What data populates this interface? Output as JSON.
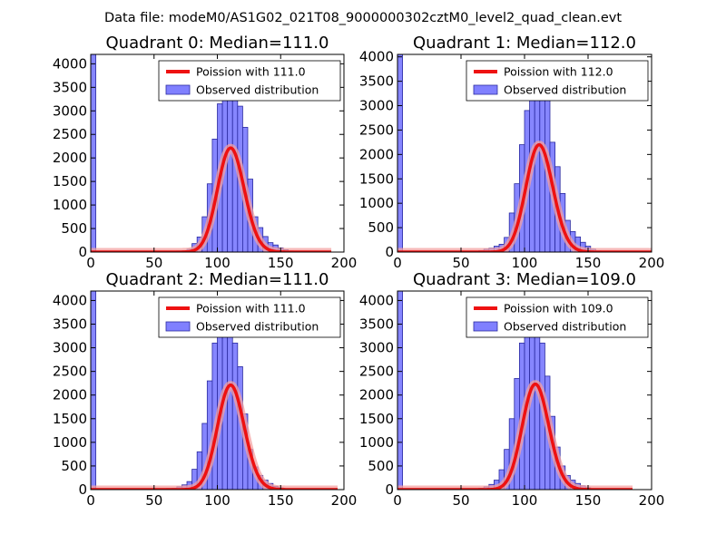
{
  "figure": {
    "suptitle": "Data file: modeM0/AS1G02_021T08_9000000302cztM0_level2_quad_clean.evt"
  },
  "colors": {
    "bar_fill": "#8080ff",
    "bar_edge": "#2a2aa0",
    "poisson_line": "#ee1111",
    "poisson_glow": "#f4a0a0",
    "axes": "#000000"
  },
  "chart_data": [
    {
      "type": "bar",
      "title": "Quadrant 0: Median=111.0",
      "xlim": [
        0,
        200
      ],
      "ylim": [
        0,
        4200
      ],
      "xticks": [
        "0",
        "50",
        "100",
        "150",
        "200"
      ],
      "yticks": [
        "0",
        "500",
        "1000",
        "1500",
        "2000",
        "2500",
        "3000",
        "3500",
        "4000"
      ],
      "legend": {
        "placement": "top-right",
        "entries": [
          "Poission with 111.0",
          "Observed distribution"
        ]
      },
      "poisson_mean": 111.0,
      "bin_width": 4,
      "bins": [
        [
          0,
          4200
        ],
        [
          64,
          20
        ],
        [
          68,
          25
        ],
        [
          72,
          30
        ],
        [
          76,
          60
        ],
        [
          80,
          180
        ],
        [
          84,
          320
        ],
        [
          88,
          750
        ],
        [
          92,
          1450
        ],
        [
          96,
          2400
        ],
        [
          100,
          3150
        ],
        [
          104,
          3750
        ],
        [
          108,
          3950
        ],
        [
          112,
          3700
        ],
        [
          116,
          3100
        ],
        [
          120,
          2650
        ],
        [
          124,
          1550
        ],
        [
          128,
          750
        ],
        [
          132,
          520
        ],
        [
          136,
          330
        ],
        [
          140,
          200
        ],
        [
          144,
          150
        ],
        [
          148,
          90
        ],
        [
          152,
          50
        ],
        [
          156,
          25
        ],
        [
          160,
          15
        ]
      ],
      "poisson_curve": {
        "x_start": 0,
        "x_end": 190
      }
    },
    {
      "type": "bar",
      "title": "Quadrant 1: Median=112.0",
      "xlim": [
        0,
        200
      ],
      "ylim": [
        0,
        4050
      ],
      "xticks": [
        "0",
        "50",
        "100",
        "150",
        "200"
      ],
      "yticks": [
        "0",
        "500",
        "1000",
        "1500",
        "2000",
        "2500",
        "3000",
        "3500",
        "4000"
      ],
      "legend": {
        "placement": "top-right",
        "entries": [
          "Poission with 112.0",
          "Observed distribution"
        ]
      },
      "poisson_mean": 112.0,
      "bin_width": 4,
      "bins": [
        [
          0,
          4050
        ],
        [
          60,
          20
        ],
        [
          64,
          30
        ],
        [
          68,
          60
        ],
        [
          72,
          80
        ],
        [
          76,
          120
        ],
        [
          80,
          160
        ],
        [
          84,
          300
        ],
        [
          88,
          800
        ],
        [
          92,
          1400
        ],
        [
          96,
          2200
        ],
        [
          100,
          2900
        ],
        [
          104,
          3500
        ],
        [
          108,
          3800
        ],
        [
          112,
          3600
        ],
        [
          116,
          3200
        ],
        [
          120,
          2250
        ],
        [
          124,
          1750
        ],
        [
          128,
          1200
        ],
        [
          132,
          650
        ],
        [
          136,
          420
        ],
        [
          140,
          310
        ],
        [
          144,
          200
        ],
        [
          148,
          120
        ],
        [
          152,
          60
        ],
        [
          156,
          25
        ],
        [
          160,
          15
        ]
      ],
      "poisson_curve": {
        "x_start": 0,
        "x_end": 200
      }
    },
    {
      "type": "bar",
      "title": "Quadrant 2: Median=111.0",
      "xlim": [
        0,
        200
      ],
      "ylim": [
        0,
        4200
      ],
      "xticks": [
        "0",
        "50",
        "100",
        "150",
        "200"
      ],
      "yticks": [
        "0",
        "500",
        "1000",
        "1500",
        "2000",
        "2500",
        "3000",
        "3500",
        "4000"
      ],
      "legend": {
        "placement": "top-right",
        "entries": [
          "Poission with 111.0",
          "Observed distribution"
        ]
      },
      "poisson_mean": 111.0,
      "bin_width": 4,
      "bins": [
        [
          0,
          4200
        ],
        [
          60,
          25
        ],
        [
          64,
          30
        ],
        [
          68,
          60
        ],
        [
          72,
          100
        ],
        [
          76,
          170
        ],
        [
          80,
          430
        ],
        [
          84,
          800
        ],
        [
          88,
          1400
        ],
        [
          92,
          2300
        ],
        [
          96,
          3100
        ],
        [
          100,
          3700
        ],
        [
          104,
          3950
        ],
        [
          108,
          3750
        ],
        [
          112,
          3100
        ],
        [
          116,
          2600
        ],
        [
          120,
          1600
        ],
        [
          124,
          850
        ],
        [
          128,
          480
        ],
        [
          132,
          300
        ],
        [
          136,
          200
        ],
        [
          140,
          130
        ],
        [
          144,
          70
        ],
        [
          148,
          40
        ],
        [
          152,
          20
        ]
      ],
      "poisson_curve": {
        "x_start": 0,
        "x_end": 195
      }
    },
    {
      "type": "bar",
      "title": "Quadrant 3: Median=109.0",
      "xlim": [
        0,
        200
      ],
      "ylim": [
        0,
        4200
      ],
      "xticks": [
        "0",
        "50",
        "100",
        "150",
        "200"
      ],
      "yticks": [
        "0",
        "500",
        "1000",
        "1500",
        "2000",
        "2500",
        "3000",
        "3500",
        "4000"
      ],
      "legend": {
        "placement": "top-right",
        "entries": [
          "Poission with 109.0",
          "Observed distribution"
        ]
      },
      "poisson_mean": 109.0,
      "bin_width": 4,
      "bins": [
        [
          0,
          4200
        ],
        [
          60,
          20
        ],
        [
          64,
          30
        ],
        [
          68,
          60
        ],
        [
          72,
          110
        ],
        [
          76,
          200
        ],
        [
          80,
          420
        ],
        [
          84,
          850
        ],
        [
          88,
          1500
        ],
        [
          92,
          2350
        ],
        [
          96,
          3100
        ],
        [
          100,
          3700
        ],
        [
          104,
          3950
        ],
        [
          108,
          3700
        ],
        [
          112,
          3100
        ],
        [
          116,
          2400
        ],
        [
          120,
          1550
        ],
        [
          124,
          900
        ],
        [
          128,
          500
        ],
        [
          132,
          300
        ],
        [
          136,
          200
        ],
        [
          140,
          130
        ],
        [
          144,
          80
        ],
        [
          148,
          40
        ],
        [
          152,
          20
        ]
      ],
      "poisson_curve": {
        "x_start": 0,
        "x_end": 185
      }
    }
  ]
}
